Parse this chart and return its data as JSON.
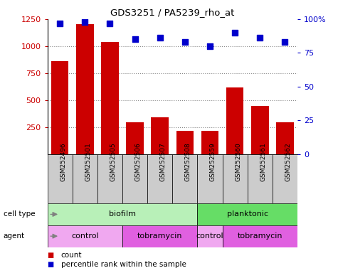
{
  "title": "GDS3251 / PA5239_rho_at",
  "samples": [
    "GSM252496",
    "GSM252501",
    "GSM252505",
    "GSM252506",
    "GSM252507",
    "GSM252508",
    "GSM252559",
    "GSM252560",
    "GSM252561",
    "GSM252562"
  ],
  "counts": [
    860,
    1200,
    1040,
    295,
    340,
    215,
    220,
    615,
    450,
    295
  ],
  "percentile": [
    97,
    98,
    97,
    85,
    86,
    83,
    80,
    90,
    86,
    83
  ],
  "ylim_left": [
    0,
    1250
  ],
  "ylim_right": [
    0,
    100
  ],
  "yticks_left": [
    250,
    500,
    750,
    1000,
    1250
  ],
  "yticks_right": [
    0,
    25,
    50,
    75,
    100
  ],
  "cell_type_groups": [
    {
      "label": "biofilm",
      "start": 0,
      "end": 6,
      "color": "#b8f0b8"
    },
    {
      "label": "planktonic",
      "start": 6,
      "end": 10,
      "color": "#66dd66"
    }
  ],
  "agent_groups": [
    {
      "label": "control",
      "start": 0,
      "end": 3,
      "color": "#f0a8f0"
    },
    {
      "label": "tobramycin",
      "start": 3,
      "end": 6,
      "color": "#e060e0"
    },
    {
      "label": "control",
      "start": 6,
      "end": 7,
      "color": "#f0a8f0"
    },
    {
      "label": "tobramycin",
      "start": 7,
      "end": 10,
      "color": "#e060e0"
    }
  ],
  "bar_color": "#cc0000",
  "dot_color": "#0000cc",
  "grid_color": "#888888",
  "bg_color": "#ffffff",
  "tick_label_color_left": "#cc0000",
  "tick_label_color_right": "#0000cc",
  "sample_box_color": "#cccccc",
  "legend_count_color": "#cc0000",
  "legend_pct_color": "#0000cc"
}
